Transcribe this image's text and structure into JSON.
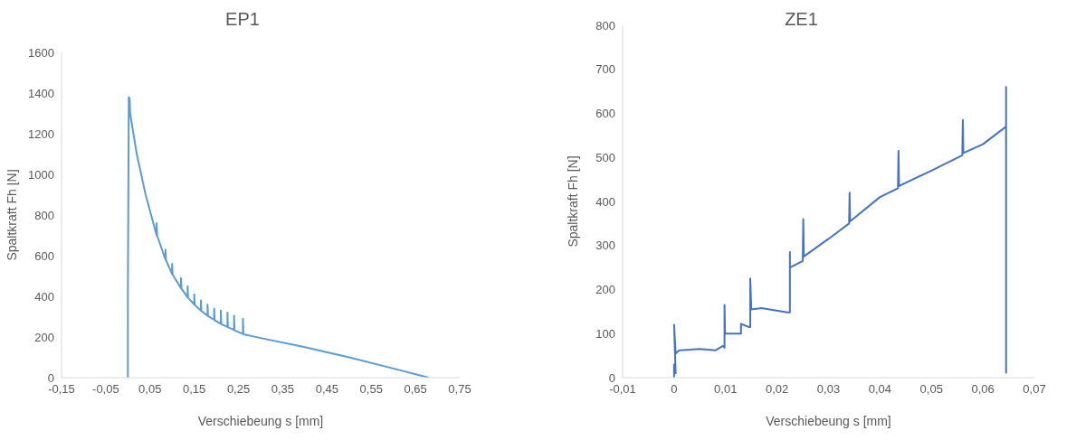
{
  "chart_data": [
    {
      "type": "line",
      "title": "EP1",
      "xlabel": "Verschiebeung s [mm]",
      "ylabel": "Spaltkraft Fh [N]",
      "xlim": [
        -0.15,
        0.75
      ],
      "xticks": [
        {
          "value": -0.15,
          "label": "-0,15"
        },
        {
          "value": -0.05,
          "label": "-0,05"
        },
        {
          "value": 0.05,
          "label": "0,05"
        },
        {
          "value": 0.15,
          "label": "0,15"
        },
        {
          "value": 0.25,
          "label": "0,25"
        },
        {
          "value": 0.35,
          "label": "0,35"
        },
        {
          "value": 0.45,
          "label": "0,45"
        },
        {
          "value": 0.55,
          "label": "0,55"
        },
        {
          "value": 0.65,
          "label": "0,65"
        },
        {
          "value": 0.75,
          "label": "0,75"
        }
      ],
      "ylim": [
        0,
        1600
      ],
      "yticks": [
        0,
        200,
        400,
        600,
        800,
        1000,
        1200,
        1400,
        1600
      ],
      "series": [
        {
          "color": "#5b9bd5",
          "x": [
            0,
            0,
            0.002,
            0.004,
            0.005,
            0.02,
            0.04,
            0.05,
            0.065,
            0.065,
            0.066,
            0.085,
            0.085,
            0.086,
            0.1,
            0.1,
            0.101,
            0.12,
            0.12,
            0.121,
            0.135,
            0.135,
            0.136,
            0.15,
            0.15,
            0.151,
            0.165,
            0.165,
            0.166,
            0.18,
            0.18,
            0.181,
            0.195,
            0.195,
            0.196,
            0.21,
            0.21,
            0.211,
            0.225,
            0.225,
            0.226,
            0.24,
            0.24,
            0.241,
            0.26,
            0.26,
            0.261,
            0.3,
            0.4,
            0.5,
            0.6,
            0.68
          ],
          "values": [
            0,
            450,
            1380,
            1370,
            1300,
            1100,
            900,
            820,
            700,
            760,
            700,
            580,
            630,
            578,
            510,
            560,
            508,
            440,
            490,
            438,
            395,
            450,
            393,
            360,
            410,
            358,
            330,
            380,
            328,
            305,
            360,
            303,
            285,
            340,
            283,
            265,
            330,
            263,
            250,
            320,
            248,
            235,
            305,
            233,
            215,
            290,
            213,
            195,
            150,
            100,
            45,
            0
          ]
        }
      ]
    },
    {
      "type": "line",
      "title": "ZE1",
      "xlabel": "Verschiebeung s [mm]",
      "ylabel": "Spaltkraft Fh [N]",
      "xlim": [
        -0.01,
        0.07
      ],
      "xticks": [
        {
          "value": -0.01,
          "label": "-0,01"
        },
        0,
        {
          "value": 0.01,
          "label": "0,01"
        },
        {
          "value": 0.02,
          "label": "0,02"
        },
        {
          "value": 0.03,
          "label": "0,03"
        },
        {
          "value": 0.04,
          "label": "0,04"
        },
        {
          "value": 0.05,
          "label": "0,05"
        },
        {
          "value": 0.06,
          "label": "0,06"
        },
        {
          "value": 0.07,
          "label": "0,07"
        }
      ],
      "ylim": [
        0,
        800
      ],
      "yticks": [
        0,
        100,
        200,
        300,
        400,
        500,
        600,
        700,
        800
      ],
      "series": [
        {
          "color": "#4472c4",
          "x": [
            0,
            0,
            0.0003,
            0,
            0.0003,
            0.001,
            0.005,
            0.008,
            0.0095,
            0.0098,
            0.0098,
            0.0099,
            0.013,
            0.013,
            0.0145,
            0.0148,
            0.0148,
            0.015,
            0.017,
            0.022,
            0.0225,
            0.0225,
            0.0225,
            0.025,
            0.0251,
            0.0252,
            0.03,
            0.034,
            0.0341,
            0.0342,
            0.04,
            0.0435,
            0.0436,
            0.0437,
            0.05,
            0.056,
            0.0561,
            0.0562,
            0.06,
            0.0645,
            0.0645,
            0.0645
          ],
          "values": [
            0,
            30,
            10,
            120,
            55,
            62,
            65,
            62,
            72,
            68,
            165,
            100,
            100,
            122,
            115,
            115,
            225,
            155,
            158,
            148,
            148,
            285,
            250,
            265,
            360,
            275,
            315,
            350,
            420,
            355,
            410,
            430,
            515,
            435,
            470,
            505,
            585,
            510,
            530,
            570,
            660,
            10
          ]
        }
      ]
    }
  ]
}
